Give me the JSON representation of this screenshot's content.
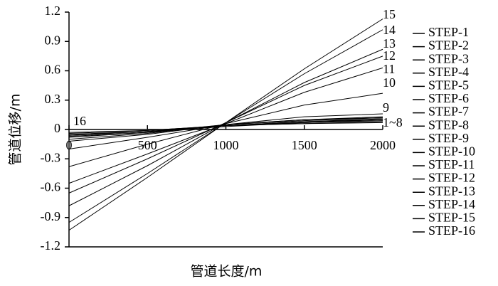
{
  "chart_data": {
    "type": "line",
    "x_label": "管道长度/m",
    "y_label": "管道位移/m",
    "x": [
      0,
      500,
      1000,
      1500,
      2000
    ],
    "xlim": [
      0,
      2000
    ],
    "xticks": [
      0,
      500,
      1000,
      1500,
      2000
    ],
    "ylim": [
      -1.2,
      1.2
    ],
    "yticks": [
      1.2,
      0.9,
      0.6,
      0.3,
      0,
      -0.3,
      -0.6,
      -0.9,
      -1.2
    ],
    "legend": "right",
    "series": [
      {
        "name": "STEP-1",
        "color": "#000000",
        "values": [
          -0.03,
          -0.01,
          0.04,
          0.06,
          0.07
        ]
      },
      {
        "name": "STEP-2",
        "color": "#000000",
        "values": [
          -0.04,
          -0.01,
          0.04,
          0.06,
          0.08
        ]
      },
      {
        "name": "STEP-3",
        "color": "#000000",
        "values": [
          -0.05,
          -0.02,
          0.04,
          0.07,
          0.09
        ]
      },
      {
        "name": "STEP-4",
        "color": "#000000",
        "values": [
          -0.06,
          -0.02,
          0.04,
          0.08,
          0.1
        ]
      },
      {
        "name": "STEP-5",
        "color": "#000000",
        "values": [
          -0.07,
          -0.03,
          0.04,
          0.08,
          0.11
        ]
      },
      {
        "name": "STEP-6",
        "color": "#000000",
        "values": [
          -0.08,
          -0.03,
          0.05,
          0.09,
          0.12
        ]
      },
      {
        "name": "STEP-7",
        "color": "#000000",
        "values": [
          -0.1,
          -0.04,
          0.05,
          0.1,
          0.12
        ]
      },
      {
        "name": "STEP-8",
        "color": "#000000",
        "values": [
          -0.12,
          -0.05,
          0.05,
          0.1,
          0.13
        ]
      },
      {
        "name": "STEP-9",
        "color": "#000000",
        "values": [
          -0.2,
          -0.08,
          0.05,
          0.13,
          0.16
        ]
      },
      {
        "name": "STEP-10",
        "color": "#000000",
        "values": [
          -0.38,
          -0.15,
          0.06,
          0.25,
          0.37
        ]
      },
      {
        "name": "STEP-11",
        "color": "#000000",
        "values": [
          -0.55,
          -0.25,
          0.06,
          0.38,
          0.63
        ]
      },
      {
        "name": "STEP-12",
        "color": "#000000",
        "values": [
          -0.65,
          -0.3,
          0.07,
          0.45,
          0.75
        ]
      },
      {
        "name": "STEP-13",
        "color": "#000000",
        "values": [
          -0.78,
          -0.37,
          0.07,
          0.48,
          0.82
        ]
      },
      {
        "name": "STEP-14",
        "color": "#000000",
        "values": [
          -0.95,
          -0.45,
          0.07,
          0.57,
          1.02
        ]
      },
      {
        "name": "STEP-15",
        "color": "#000000",
        "values": [
          -1.03,
          -0.49,
          0.07,
          0.62,
          1.13
        ]
      },
      {
        "name": "STEP-16",
        "color": "#000000",
        "values": [
          -0.06,
          -0.02,
          0.03,
          0.07,
          0.1
        ]
      }
    ],
    "annotations": [
      "15",
      "14",
      "13",
      "12",
      "11",
      "10",
      "9",
      "1~8",
      "16"
    ]
  }
}
